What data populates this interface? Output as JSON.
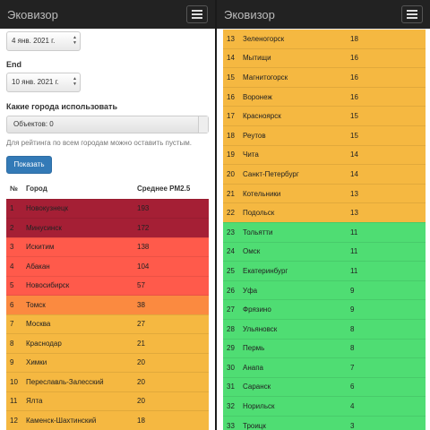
{
  "left": {
    "brand": "Эковизор",
    "start_date": "4 янв. 2021 г.",
    "end_label": "End",
    "end_date": "10 янв. 2021 г.",
    "cities_label": "Какие города использовать",
    "cities_value": "Объектов: 0",
    "help_text": "Для рейтинга по всем городам можно оставить пустым.",
    "show_button": "Показать",
    "table": {
      "headers": [
        "№",
        "Город",
        "Среднее PM2.5"
      ],
      "rows": [
        {
          "n": "1",
          "city": "Новокузнецк",
          "pm": "193",
          "color": "#a51f35"
        },
        {
          "n": "2",
          "city": "Минусинск",
          "pm": "172",
          "color": "#a51f35"
        },
        {
          "n": "3",
          "city": "Искитим",
          "pm": "138",
          "color": "#ff5a4b"
        },
        {
          "n": "4",
          "city": "Абакан",
          "pm": "104",
          "color": "#ff5a4b"
        },
        {
          "n": "5",
          "city": "Новосибирск",
          "pm": "57",
          "color": "#ff5a4b"
        },
        {
          "n": "6",
          "city": "Томск",
          "pm": "38",
          "color": "#fb8a40"
        },
        {
          "n": "7",
          "city": "Москва",
          "pm": "27",
          "color": "#f5b841"
        },
        {
          "n": "8",
          "city": "Краснодар",
          "pm": "21",
          "color": "#f5b841"
        },
        {
          "n": "9",
          "city": "Химки",
          "pm": "20",
          "color": "#f5b841"
        },
        {
          "n": "10",
          "city": "Переславль-Залесский",
          "pm": "20",
          "color": "#f5b841"
        },
        {
          "n": "11",
          "city": "Ялта",
          "pm": "20",
          "color": "#f5b841"
        },
        {
          "n": "12",
          "city": "Каменск-Шахтинский",
          "pm": "18",
          "color": "#f5b841"
        }
      ]
    }
  },
  "right": {
    "brand": "Эковизор",
    "table": {
      "rows": [
        {
          "n": "13",
          "city": "Зеленогорск",
          "pm": "18",
          "color": "#f5b841"
        },
        {
          "n": "14",
          "city": "Мытищи",
          "pm": "16",
          "color": "#f5b841"
        },
        {
          "n": "15",
          "city": "Магнитогорск",
          "pm": "16",
          "color": "#f5b841"
        },
        {
          "n": "16",
          "city": "Воронеж",
          "pm": "16",
          "color": "#f5b841"
        },
        {
          "n": "17",
          "city": "Красноярск",
          "pm": "15",
          "color": "#f5b841"
        },
        {
          "n": "18",
          "city": "Реутов",
          "pm": "15",
          "color": "#f5b841"
        },
        {
          "n": "19",
          "city": "Чита",
          "pm": "14",
          "color": "#f5b841"
        },
        {
          "n": "20",
          "city": "Санкт-Петербург",
          "pm": "14",
          "color": "#f5b841"
        },
        {
          "n": "21",
          "city": "Котельники",
          "pm": "13",
          "color": "#f5b841"
        },
        {
          "n": "22",
          "city": "Подольск",
          "pm": "13",
          "color": "#f5b841"
        },
        {
          "n": "23",
          "city": "Тольятти",
          "pm": "11",
          "color": "#4fdd73"
        },
        {
          "n": "24",
          "city": "Омск",
          "pm": "11",
          "color": "#4fdd73"
        },
        {
          "n": "25",
          "city": "Екатеринбург",
          "pm": "11",
          "color": "#4fdd73"
        },
        {
          "n": "26",
          "city": "Уфа",
          "pm": "9",
          "color": "#4fdd73"
        },
        {
          "n": "27",
          "city": "Фрязино",
          "pm": "9",
          "color": "#4fdd73"
        },
        {
          "n": "28",
          "city": "Ульяновск",
          "pm": "8",
          "color": "#4fdd73"
        },
        {
          "n": "29",
          "city": "Пермь",
          "pm": "8",
          "color": "#4fdd73"
        },
        {
          "n": "30",
          "city": "Анапа",
          "pm": "7",
          "color": "#4fdd73"
        },
        {
          "n": "31",
          "city": "Саранск",
          "pm": "6",
          "color": "#4fdd73"
        },
        {
          "n": "32",
          "city": "Норильск",
          "pm": "4",
          "color": "#4fdd73"
        },
        {
          "n": "33",
          "city": "Троицк",
          "pm": "3",
          "color": "#4fdd73"
        }
      ]
    }
  }
}
